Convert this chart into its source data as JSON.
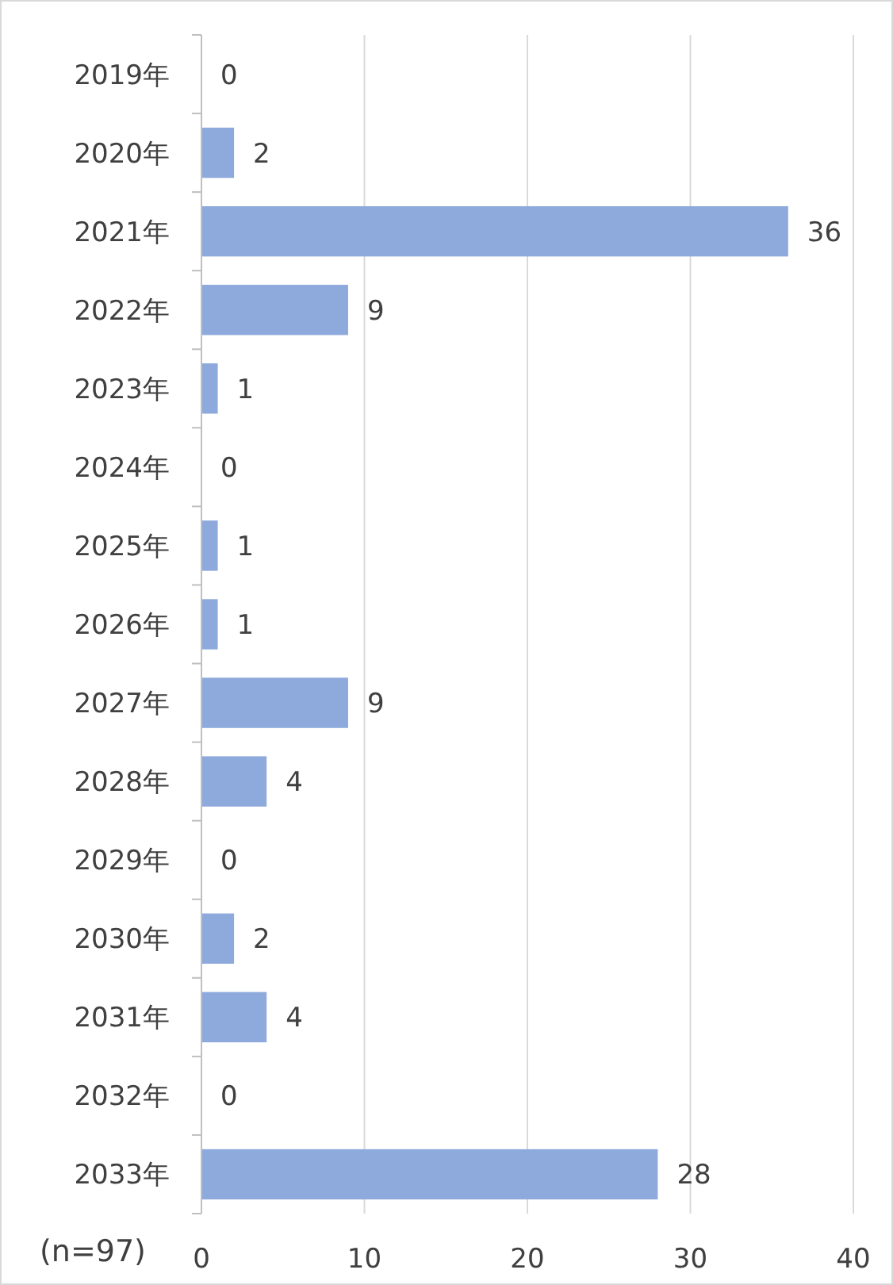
{
  "chart_data": {
    "type": "bar",
    "orientation": "horizontal",
    "categories": [
      "2019年",
      "2020年",
      "2021年",
      "2022年",
      "2023年",
      "2024年",
      "2025年",
      "2026年",
      "2027年",
      "2028年",
      "2029年",
      "2030年",
      "2031年",
      "2032年",
      "2033年"
    ],
    "values": [
      0,
      2,
      36,
      9,
      1,
      0,
      1,
      1,
      9,
      4,
      0,
      2,
      4,
      0,
      28
    ],
    "color": "#8eaadc",
    "xlim": [
      0,
      40
    ],
    "xticks": [
      0,
      10,
      20,
      30,
      40
    ],
    "grid": "x",
    "data_labels": true,
    "annotations": [
      "(n=97)"
    ]
  }
}
